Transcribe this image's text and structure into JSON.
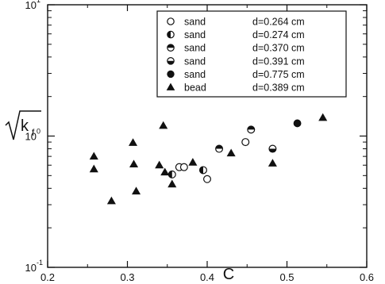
{
  "chart_data": {
    "type": "scatter",
    "title": "",
    "xlabel": "C",
    "ylabel": "√k_f",
    "ylabel_main": "k",
    "ylabel_sub": "f",
    "xlim": [
      0.2,
      0.6
    ],
    "ylim": [
      0.1,
      10
    ],
    "yscale": "log",
    "grid": false,
    "legend_position": "top-right",
    "x_ticks": [
      {
        "value": 0.2,
        "label": "0.2"
      },
      {
        "value": 0.3,
        "label": "0.3"
      },
      {
        "value": 0.4,
        "label": "0.4"
      },
      {
        "value": 0.5,
        "label": "0.5"
      },
      {
        "value": 0.6,
        "label": "0.6"
      }
    ],
    "y_ticks": [
      {
        "value": 0.1,
        "base": "10",
        "exp": "-1"
      },
      {
        "value": 1,
        "base": "10",
        "exp": "0"
      },
      {
        "value": 10,
        "base": "10",
        "exp": "1"
      }
    ],
    "series": [
      {
        "name": "sand",
        "d_label": "d=0.264 cm",
        "marker": "circle-open",
        "x": [
          0.365,
          0.371,
          0.4,
          0.448
        ],
        "y": [
          0.58,
          0.58,
          0.47,
          0.9
        ]
      },
      {
        "name": "sand",
        "d_label": "d=0.274 cm",
        "marker": "circle-half-left",
        "x": [
          0.356,
          0.395
        ],
        "y": [
          0.51,
          0.55
        ]
      },
      {
        "name": "sand",
        "d_label": "d=0.370 cm",
        "marker": "circle-half-top",
        "x": [
          0.415,
          0.455
        ],
        "y": [
          0.8,
          1.12
        ]
      },
      {
        "name": "sand",
        "d_label": "d=0.391 cm",
        "marker": "circle-half-bottom",
        "x": [
          0.482
        ],
        "y": [
          0.8
        ]
      },
      {
        "name": "sand",
        "d_label": "d=0.775 cm",
        "marker": "circle-filled",
        "x": [
          0.513
        ],
        "y": [
          1.25
        ]
      },
      {
        "name": "bead",
        "d_label": "d=0.389 cm",
        "marker": "triangle-filled",
        "x": [
          0.258,
          0.258,
          0.28,
          0.307,
          0.308,
          0.311,
          0.34,
          0.345,
          0.347,
          0.356,
          0.382,
          0.43,
          0.482,
          0.545
        ],
        "y": [
          0.7,
          0.56,
          0.32,
          0.89,
          0.61,
          0.38,
          0.6,
          1.2,
          0.53,
          0.43,
          0.63,
          0.74,
          0.62,
          1.38
        ]
      }
    ]
  }
}
